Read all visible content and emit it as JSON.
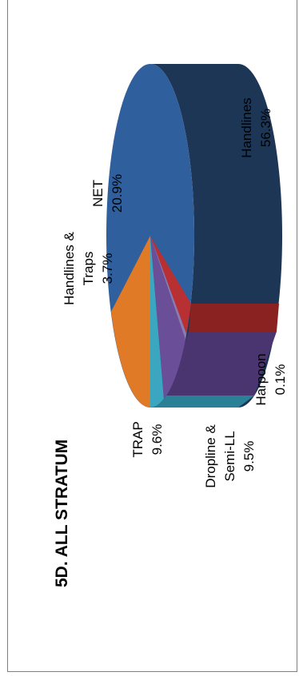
{
  "chart_data": {
    "type": "pie",
    "title": "5D. ALL STRATUM",
    "slices": [
      {
        "label_lines": [
          "Handlines",
          "56.3%"
        ],
        "value": 56.3,
        "color": "#2f5f9c",
        "side_color": "#1d3656"
      },
      {
        "label_lines": [
          "NET",
          "20.9%"
        ],
        "value": 20.9,
        "color": "#2f5f9c",
        "side_color": "#1d3656"
      },
      {
        "label_lines": [
          "Handlines &",
          "Traps",
          "3.7%"
        ],
        "value": 3.7,
        "color": "#b83031",
        "side_color": "#8a2222"
      },
      {
        "label_lines": [
          "Harpoon",
          "0.1%"
        ],
        "value": 0.1,
        "color": "#8f7ab0",
        "side_color": "#5a4a82"
      },
      {
        "label_lines": [
          "Dropline &",
          "Semi-LL",
          "9.5%"
        ],
        "value": 9.5,
        "color": "#6a4f98",
        "side_color": "#4a3570"
      },
      {
        "label_lines": [
          "TRAP",
          "9.6%"
        ],
        "value": 9.6,
        "color": "#3aa6bf",
        "side_color": "#2a8096"
      },
      {
        "label_lines": [
          "Handlines &",
          "Traps",
          "3.7%"
        ],
        "value": 3.7,
        "color": "#e07a26",
        "side_color": "#b35e18"
      }
    ]
  }
}
